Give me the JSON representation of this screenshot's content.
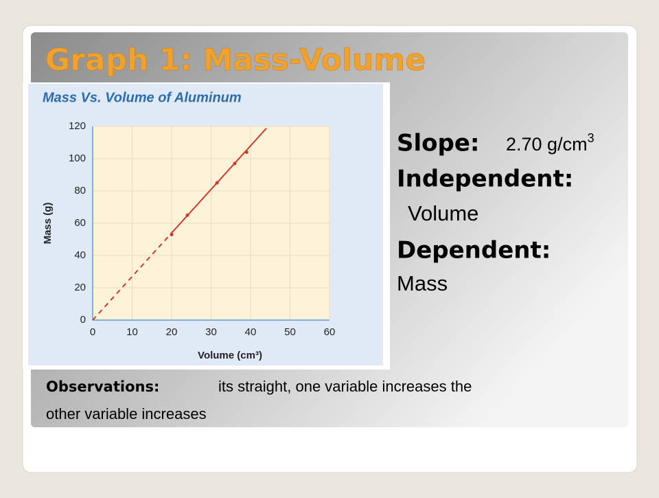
{
  "slide": {
    "title": "Graph 1: Mass-Volume",
    "slope_label": "Slope:",
    "slope_value": "2.70 g/cm",
    "slope_sup": "3",
    "independent_label": "Independent:",
    "independent_value": "Volume",
    "dependent_label": "Dependent:",
    "dependent_value": "Mass",
    "observations_label": "Observations:",
    "observations_line1": "its straight, one variable increases the",
    "observations_line2": "other variable increases"
  },
  "chart_data": {
    "type": "scatter",
    "title": "Mass Vs. Volume of Aluminum",
    "x_label": "Volume (cm³)",
    "y_label": "Mass (g)",
    "xlim": [
      0,
      60
    ],
    "ylim": [
      0,
      120
    ],
    "xticks": [
      0,
      10,
      20,
      30,
      40,
      50,
      60
    ],
    "yticks": [
      0,
      20,
      40,
      60,
      80,
      100,
      120
    ],
    "grid": true,
    "series": [
      {
        "color": "#d9342b",
        "x": [
          20,
          24,
          31.5,
          36,
          39
        ],
        "values": [
          53,
          65,
          85,
          97,
          104
        ],
        "style": "points"
      },
      {
        "color": "#d9342b",
        "x": [
          0,
          20
        ],
        "values": [
          0,
          54
        ],
        "style": "dashed"
      },
      {
        "color": "#d9342b",
        "x": [
          20,
          44
        ],
        "values": [
          54,
          118.8
        ],
        "style": "solid"
      }
    ]
  }
}
